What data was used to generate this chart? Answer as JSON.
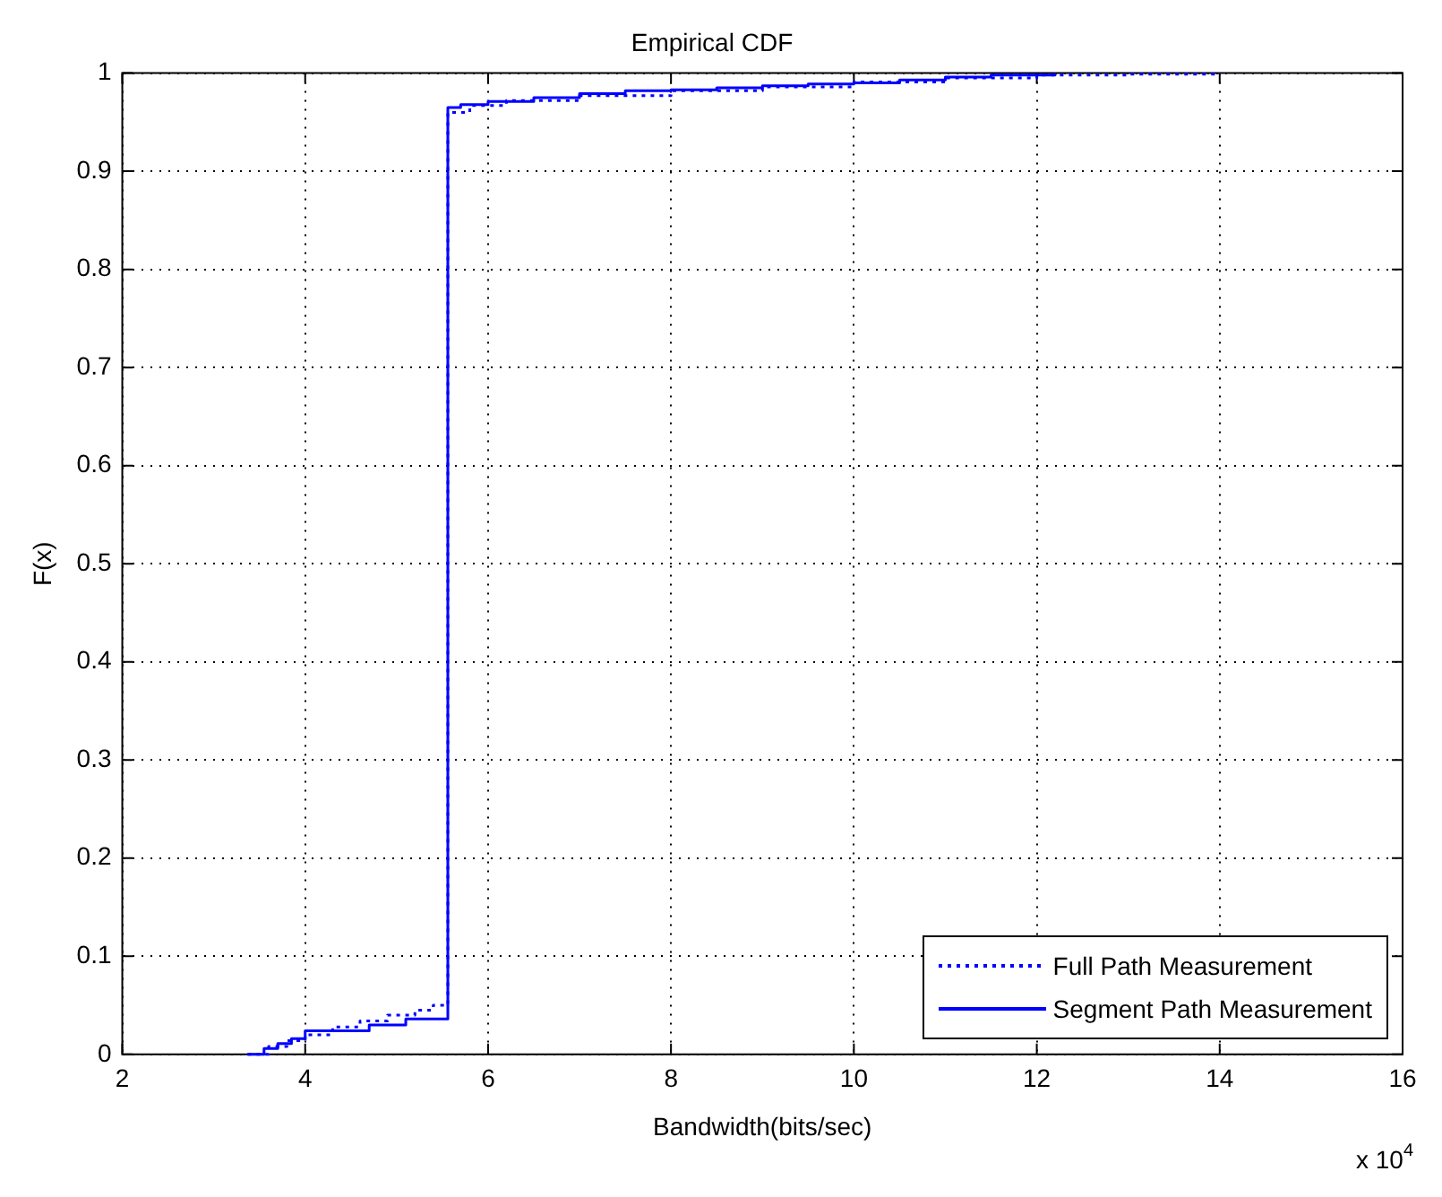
{
  "chart_data": {
    "type": "step",
    "title": "Empirical CDF",
    "xlabel": "Bandwidth(bits/sec)",
    "ylabel": "F(x)",
    "annotations": [
      "x 10$^{4}$"
    ],
    "xlim": [
      2,
      16
    ],
    "xticks": [
      2,
      4,
      6,
      8,
      10,
      12,
      14,
      16
    ],
    "ylim": [
      0,
      1
    ],
    "yticks": [
      0,
      0.1,
      0.2,
      0.3,
      0.4,
      0.5,
      0.6,
      0.7,
      0.8,
      0.9,
      1
    ],
    "grid": true,
    "legend": "bottom right",
    "marker": "none",
    "series": [
      {
        "name": "Full Path Measurement",
        "color": "#0000ff",
        "line_style": "dotted",
        "x": [
          3.37,
          3.6,
          3.8,
          4.0,
          4.3,
          4.6,
          4.9,
          5.2,
          5.4,
          5.56,
          5.8,
          6.2,
          7,
          8,
          9,
          10,
          11,
          12,
          13,
          14
        ],
        "values": [
          0,
          0.008,
          0.014,
          0.02,
          0.028,
          0.034,
          0.04,
          0.045,
          0.05,
          0.96,
          0.967,
          0.972,
          0.977,
          0.982,
          0.986,
          0.991,
          0.995,
          0.998,
          0.999,
          1
        ]
      },
      {
        "name": "Segment Path Measurement",
        "color": "#0000ff",
        "line_style": "solid",
        "x": [
          3.37,
          3.55,
          3.7,
          3.85,
          4.0,
          4.7,
          5.1,
          5.56,
          5.7,
          6.0,
          6.5,
          7.0,
          7.5,
          8.0,
          8.5,
          9.0,
          9.5,
          10.0,
          10.5,
          11.0,
          11.5,
          12.2
        ],
        "values": [
          0,
          0.006,
          0.011,
          0.016,
          0.024,
          0.03,
          0.036,
          0.965,
          0.968,
          0.971,
          0.975,
          0.979,
          0.982,
          0.983,
          0.985,
          0.987,
          0.989,
          0.99,
          0.993,
          0.996,
          0.998,
          1
        ]
      }
    ]
  }
}
